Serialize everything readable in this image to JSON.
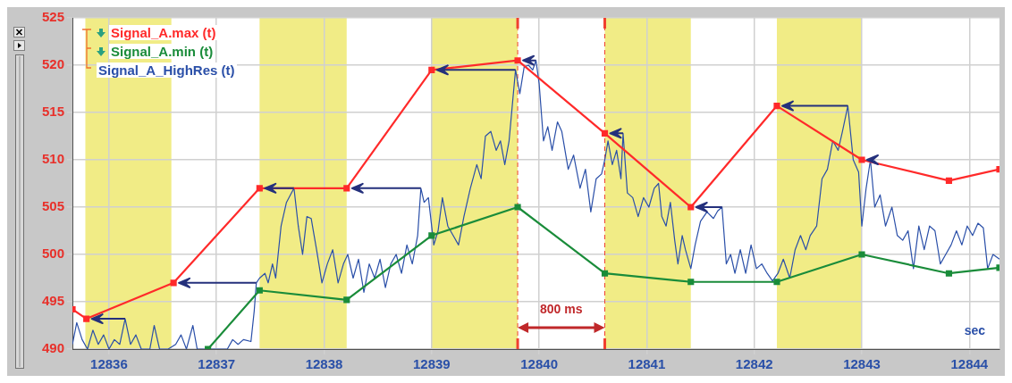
{
  "chart_data": {
    "type": "line",
    "xlabel": "sec",
    "xlim": [
      12835.66,
      12844.28
    ],
    "xticks": [
      12836,
      12837,
      12838,
      12839,
      12840,
      12841,
      12842,
      12843,
      12844
    ],
    "ylim": [
      490,
      525
    ],
    "yticks": [
      490,
      495,
      500,
      505,
      510,
      515,
      520,
      525
    ],
    "grid": true,
    "legend": "top left",
    "series": [
      {
        "name": "Signal_A.max (t)",
        "color": "#ff2a2a",
        "marker": "square",
        "x": [
          12835.66,
          12835.79,
          12836.6,
          12837.4,
          12838.21,
          12839.0,
          12839.8,
          12840.61,
          12841.41,
          12842.21,
          12843.0,
          12843.81,
          12844.28
        ],
        "values": [
          494.2,
          493.2,
          497,
          507,
          507,
          519.5,
          520.5,
          512.8,
          505,
          515.7,
          510,
          507.8,
          509
        ]
      },
      {
        "name": "Signal_A.min (t)",
        "color": "#1a8c3a",
        "marker": "square",
        "x": [
          12836.92,
          12837.4,
          12838.21,
          12839.0,
          12839.8,
          12840.61,
          12841.41,
          12842.21,
          12843.0,
          12843.81,
          12844.28
        ],
        "values": [
          490,
          496.2,
          495.2,
          502,
          505,
          498,
          497.1,
          497.1,
          500,
          498,
          498.6
        ]
      },
      {
        "name": "Signal_A_HighRes (t)",
        "color": "#2a4fa8",
        "marker": "none",
        "x": [
          12835.66,
          12835.7,
          12835.75,
          12835.8,
          12835.85,
          12835.9,
          12835.95,
          12836.0,
          12836.05,
          12836.1,
          12836.15,
          12836.2,
          12836.25,
          12836.3,
          12836.38,
          12836.42,
          12836.47,
          12836.55,
          12836.62,
          12836.67,
          12836.72,
          12836.78,
          12836.82,
          12836.9,
          12836.96,
          12837.02,
          12837.1,
          12837.15,
          12837.2,
          12837.25,
          12837.32,
          12837.35,
          12837.37,
          12837.4,
          12837.45,
          12837.48,
          12837.52,
          12837.55,
          12837.6,
          12837.65,
          12837.72,
          12837.76,
          12837.8,
          12837.84,
          12837.88,
          12837.93,
          12837.98,
          12838.03,
          12838.08,
          12838.13,
          12838.18,
          12838.22,
          12838.27,
          12838.32,
          12838.37,
          12838.42,
          12838.47,
          12838.52,
          12838.57,
          12838.62,
          12838.67,
          12838.72,
          12838.77,
          12838.82,
          12838.87,
          12838.9,
          12838.93,
          12838.97,
          12839.02,
          12839.06,
          12839.1,
          12839.15,
          12839.2,
          12839.25,
          12839.3,
          12839.36,
          12839.42,
          12839.46,
          12839.5,
          12839.55,
          12839.6,
          12839.64,
          12839.68,
          12839.72,
          12839.78,
          12839.82,
          12839.86,
          12839.9,
          12839.94,
          12839.97,
          12840.0,
          12840.04,
          12840.08,
          12840.12,
          12840.17,
          12840.21,
          12840.27,
          12840.32,
          12840.38,
          12840.43,
          12840.48,
          12840.53,
          12840.58,
          12840.61,
          12840.64,
          12840.68,
          12840.72,
          12840.76,
          12840.78,
          12840.82,
          12840.87,
          12840.92,
          12840.97,
          12841.02,
          12841.07,
          12841.11,
          12841.14,
          12841.18,
          12841.22,
          12841.26,
          12841.29,
          12841.33,
          12841.36,
          12841.41,
          12841.45,
          12841.5,
          12841.56,
          12841.62,
          12841.66,
          12841.7,
          12841.74,
          12841.78,
          12841.82,
          12841.87,
          12841.92,
          12841.97,
          12842.02,
          12842.07,
          12842.12,
          12842.17,
          12842.22,
          12842.27,
          12842.33,
          12842.38,
          12842.43,
          12842.48,
          12842.52,
          12842.58,
          12842.63,
          12842.68,
          12842.73,
          12842.78,
          12842.82,
          12842.87,
          12842.92,
          12842.97,
          12843.0,
          12843.04,
          12843.08,
          12843.12,
          12843.17,
          12843.22,
          12843.28,
          12843.33,
          12843.38,
          12843.43,
          12843.48,
          12843.53,
          12843.58,
          12843.63,
          12843.68,
          12843.73,
          12843.78,
          12843.83,
          12843.88,
          12843.93,
          12843.98,
          12844.03,
          12844.08,
          12844.13,
          12844.17,
          12844.22,
          12844.28
        ],
        "values": [
          490.5,
          492.8,
          491,
          490,
          492,
          490.5,
          491.5,
          490,
          491,
          490.5,
          493.2,
          490.5,
          491.5,
          490,
          490,
          492.5,
          490,
          490,
          490.5,
          491.5,
          490,
          492.5,
          490,
          490,
          490,
          490,
          490,
          491,
          490.5,
          491,
          490.8,
          494,
          497,
          497.5,
          498,
          497,
          499,
          497.5,
          503,
          505.5,
          507,
          503,
          500,
          504,
          503.8,
          500.5,
          497,
          499,
          500.5,
          497,
          499,
          500,
          497.5,
          499.5,
          496,
          499,
          497.5,
          499.5,
          496.5,
          499,
          500,
          498,
          501,
          499,
          502,
          507,
          505.5,
          506,
          501,
          502.5,
          506,
          503,
          502,
          501,
          504,
          507,
          509.5,
          508,
          512.5,
          513,
          511,
          512,
          509.5,
          512,
          519.5,
          517,
          519.8,
          520,
          519.5,
          520.5,
          518,
          512,
          513.5,
          511,
          514,
          513,
          509,
          510.5,
          507,
          509,
          504.5,
          508,
          508.5,
          510,
          512,
          509.5,
          511,
          508,
          512.8,
          506.5,
          506,
          504,
          506,
          505,
          507,
          507.5,
          504,
          503,
          505.5,
          501.5,
          499,
          502,
          500.5,
          498.5,
          501,
          503.5,
          504.5,
          503.8,
          504.6,
          505,
          499,
          500,
          498,
          500.5,
          498,
          501,
          498.5,
          499,
          498,
          497.2,
          498,
          499.5,
          497.5,
          500.5,
          502,
          500.5,
          502,
          503,
          508,
          509,
          512,
          511,
          513,
          515.7,
          510,
          508.7,
          503,
          507,
          510,
          505,
          506.3,
          503,
          505,
          502,
          501.5,
          502.5,
          498.5,
          503,
          500.5,
          503,
          502.5,
          499,
          500,
          501,
          502.5,
          501,
          503,
          502,
          503.3,
          502.8,
          498.5,
          500,
          499.5
        ]
      }
    ],
    "bands": [
      {
        "axis": "x",
        "from": 12835.78,
        "to": 12836.58,
        "color": "#f1ec86"
      },
      {
        "axis": "x",
        "from": 12837.4,
        "to": 12838.21,
        "color": "#f1ec86"
      },
      {
        "axis": "x",
        "from": 12839.0,
        "to": 12839.8,
        "color": "#f1ec86"
      },
      {
        "axis": "x",
        "from": 12840.61,
        "to": 12841.41,
        "color": "#f1ec86"
      },
      {
        "axis": "x",
        "from": 12842.21,
        "to": 12843.0,
        "color": "#f1ec86"
      }
    ],
    "ref_lines": [
      {
        "axis": "x",
        "value": 12839.8,
        "color": "#f04030",
        "line_style": "dashed"
      },
      {
        "axis": "x",
        "value": 12840.61,
        "color": "#f04030",
        "line_style": "dashed"
      }
    ],
    "annotations": [
      "800 ms"
    ]
  }
}
